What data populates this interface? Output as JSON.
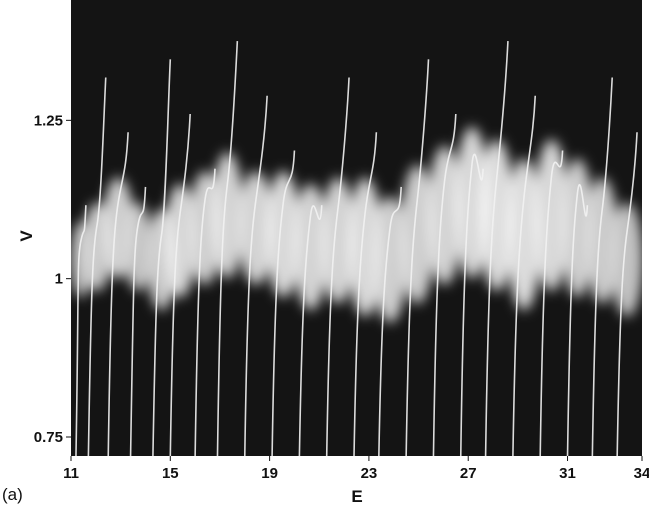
{
  "chart_data": {
    "type": "heatmap",
    "title": "",
    "panel_label": "(a)",
    "xlabel": "E",
    "ylabel": "V",
    "xlim": [
      11,
      34
    ],
    "ylim": [
      0.72,
      1.44
    ],
    "x_ticks": [
      {
        "value": 11,
        "label": "11"
      },
      {
        "value": 15,
        "label": "15"
      },
      {
        "value": 19,
        "label": "19"
      },
      {
        "value": 23,
        "label": "23"
      },
      {
        "value": 27,
        "label": "27"
      },
      {
        "value": 31,
        "label": "31"
      },
      {
        "value": 34,
        "label": "34"
      }
    ],
    "y_ticks": [
      {
        "value": 0.75,
        "label": "0.75"
      },
      {
        "value": 1,
        "label": "1"
      },
      {
        "value": 1.25,
        "label": "1.25"
      }
    ],
    "colormap": "grayscale (black = low, white = high)",
    "grid": false,
    "resonance_lines": [
      {
        "e_low": 11.2,
        "e_high": 11.6,
        "v_center": 1.03,
        "width": 0.06,
        "intensity": 0.6
      },
      {
        "e_low": 11.7,
        "e_high": 12.4,
        "v_center": 1.05,
        "width": 0.07,
        "intensity": 0.75
      },
      {
        "e_low": 12.5,
        "e_high": 13.3,
        "v_center": 1.08,
        "width": 0.08,
        "intensity": 0.85
      },
      {
        "e_low": 13.4,
        "e_high": 14.0,
        "v_center": 1.05,
        "width": 0.07,
        "intensity": 0.7
      },
      {
        "e_low": 14.3,
        "e_high": 15.0,
        "v_center": 1.03,
        "width": 0.08,
        "intensity": 0.8
      },
      {
        "e_low": 15.0,
        "e_high": 15.8,
        "v_center": 1.06,
        "width": 0.09,
        "intensity": 0.9
      },
      {
        "e_low": 16.0,
        "e_high": 16.8,
        "v_center": 1.08,
        "width": 0.09,
        "intensity": 0.85
      },
      {
        "e_low": 16.9,
        "e_high": 17.7,
        "v_center": 1.1,
        "width": 0.1,
        "intensity": 0.9
      },
      {
        "e_low": 18.0,
        "e_high": 18.9,
        "v_center": 1.08,
        "width": 0.09,
        "intensity": 0.9
      },
      {
        "e_low": 19.1,
        "e_high": 20.0,
        "v_center": 1.07,
        "width": 0.1,
        "intensity": 0.95
      },
      {
        "e_low": 20.2,
        "e_high": 21.1,
        "v_center": 1.05,
        "width": 0.1,
        "intensity": 0.9
      },
      {
        "e_low": 21.3,
        "e_high": 22.2,
        "v_center": 1.06,
        "width": 0.1,
        "intensity": 0.9
      },
      {
        "e_low": 22.4,
        "e_high": 23.3,
        "v_center": 1.05,
        "width": 0.11,
        "intensity": 0.95
      },
      {
        "e_low": 23.4,
        "e_high": 24.3,
        "v_center": 1.03,
        "width": 0.1,
        "intensity": 0.85
      },
      {
        "e_low": 24.5,
        "e_high": 25.4,
        "v_center": 1.07,
        "width": 0.11,
        "intensity": 0.85
      },
      {
        "e_low": 25.6,
        "e_high": 26.5,
        "v_center": 1.1,
        "width": 0.11,
        "intensity": 0.9
      },
      {
        "e_low": 26.7,
        "e_high": 27.6,
        "v_center": 1.12,
        "width": 0.12,
        "intensity": 0.95
      },
      {
        "e_low": 27.7,
        "e_high": 28.6,
        "v_center": 1.1,
        "width": 0.12,
        "intensity": 1.0
      },
      {
        "e_low": 28.8,
        "e_high": 29.7,
        "v_center": 1.07,
        "width": 0.12,
        "intensity": 1.0
      },
      {
        "e_low": 29.9,
        "e_high": 30.8,
        "v_center": 1.1,
        "width": 0.12,
        "intensity": 0.95
      },
      {
        "e_low": 31.0,
        "e_high": 31.8,
        "v_center": 1.08,
        "width": 0.11,
        "intensity": 0.85
      },
      {
        "e_low": 32.0,
        "e_high": 32.8,
        "v_center": 1.06,
        "width": 0.1,
        "intensity": 0.8
      },
      {
        "e_low": 33.0,
        "e_high": 33.8,
        "v_center": 1.03,
        "width": 0.09,
        "intensity": 0.7
      }
    ]
  }
}
